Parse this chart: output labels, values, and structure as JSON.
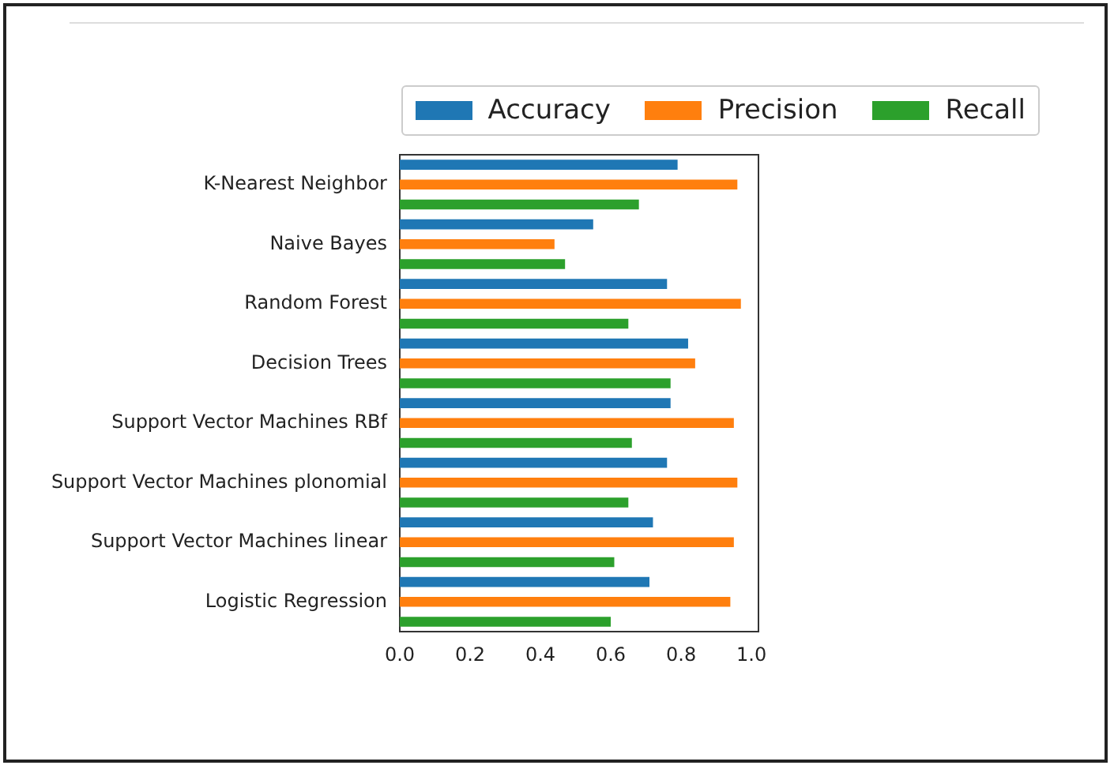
{
  "chart_data": {
    "type": "bar",
    "orientation": "horizontal",
    "categories": [
      "K-Nearest Neighbor",
      "Naive Bayes",
      "Random Forest",
      "Decision Trees",
      "Support Vector Machines RBf",
      "Support Vector Machines plonomial",
      "Support Vector Machines linear",
      "Logistic Regression"
    ],
    "series": [
      {
        "name": "Accuracy",
        "color": "#1f77b4",
        "values": [
          0.79,
          0.55,
          0.76,
          0.82,
          0.77,
          0.76,
          0.72,
          0.71
        ]
      },
      {
        "name": "Precision",
        "color": "#ff7f0e",
        "values": [
          0.96,
          0.44,
          0.97,
          0.84,
          0.95,
          0.96,
          0.95,
          0.94
        ]
      },
      {
        "name": "Recall",
        "color": "#2ca02c",
        "values": [
          0.68,
          0.47,
          0.65,
          0.77,
          0.66,
          0.65,
          0.61,
          0.6
        ]
      }
    ],
    "xlim": [
      0,
      1.02
    ],
    "xticks": [
      {
        "value": 0,
        "label": "0.0"
      },
      0.2,
      0.4,
      0.6,
      0.8,
      {
        "value": 1,
        "label": "1.0"
      }
    ],
    "grid": false,
    "legend": "top right"
  }
}
